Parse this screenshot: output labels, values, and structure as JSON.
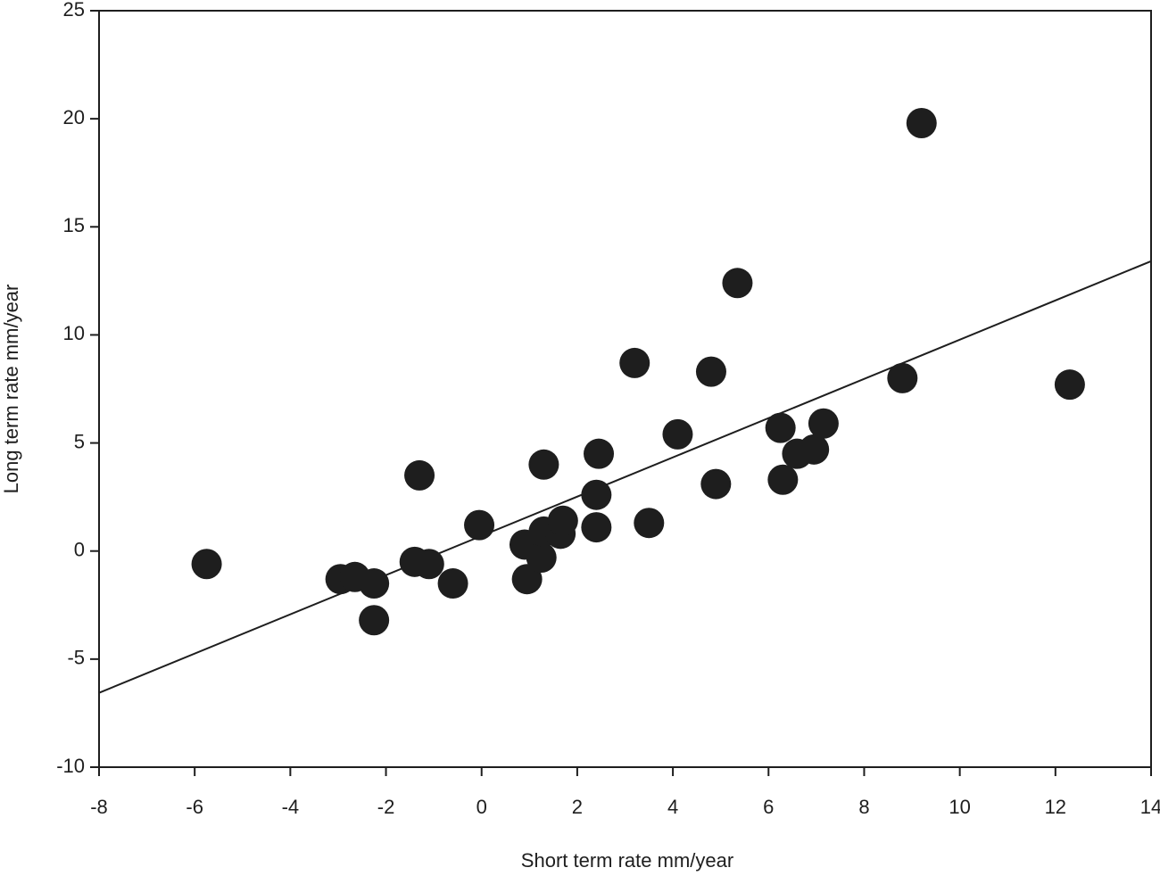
{
  "chart_data": {
    "type": "scatter",
    "x_label": "Short term rate mm/year",
    "y_label": "Long term rate mm/year",
    "x": [
      -5.75,
      -2.95,
      -2.65,
      -2.25,
      -2.25,
      -1.4,
      -1.3,
      -1.1,
      -0.6,
      -0.05,
      0.9,
      0.95,
      1.25,
      1.3,
      1.3,
      1.65,
      1.7,
      2.4,
      2.4,
      2.45,
      3.2,
      3.5,
      4.1,
      4.8,
      4.9,
      5.35,
      6.25,
      6.3,
      6.6,
      6.95,
      7.15,
      8.8,
      9.2,
      12.3
    ],
    "values": [
      -0.6,
      -1.3,
      -1.2,
      -1.5,
      -3.2,
      -0.5,
      3.5,
      -0.6,
      -1.5,
      1.2,
      0.3,
      -1.3,
      -0.3,
      0.9,
      4.0,
      0.8,
      1.4,
      1.1,
      2.6,
      4.5,
      8.7,
      1.3,
      5.4,
      8.3,
      3.1,
      12.4,
      5.7,
      3.3,
      4.5,
      4.7,
      5.9,
      8.0,
      19.8,
      7.7
    ],
    "color": "#1e1e1e",
    "trendline": {
      "x": [
        -8,
        14
      ],
      "y": [
        -6.56,
        13.41
      ],
      "color": "#1e1e1e"
    },
    "xlim": [
      -8,
      14
    ],
    "xticks": [
      -8,
      -6,
      -4,
      -2,
      0,
      2,
      4,
      6,
      8,
      10,
      12,
      14
    ],
    "ylim": [
      -10,
      25
    ],
    "yticks": [
      -10,
      -5,
      0,
      5,
      10,
      15,
      20,
      25
    ],
    "grid": false
  }
}
